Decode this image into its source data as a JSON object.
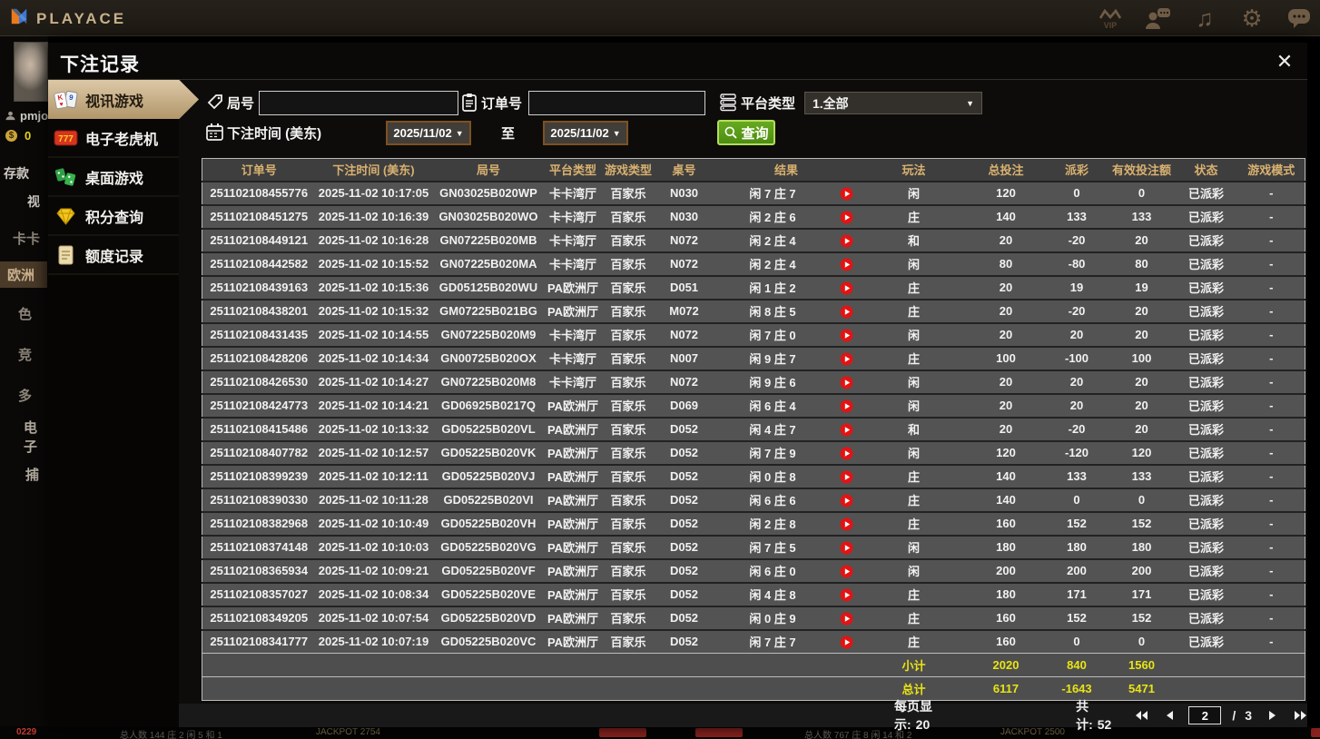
{
  "topbar": {
    "brand": "PLAYACE",
    "icons": [
      "vip-icon",
      "support-icon",
      "music-icon",
      "settings-icon",
      "chat-icon"
    ]
  },
  "background_left": {
    "username": "pmjo",
    "balance": "0",
    "fragments": [
      "存款",
      "视",
      "卡卡",
      "欧洲",
      "色",
      "竞",
      "多",
      "电子",
      "捕"
    ]
  },
  "background_bottom": {
    "left_text": "0229",
    "table1_info": "总人数 144 庄 2 闲 5 和 1",
    "jackpot1": "JACKPOT 2754",
    "table2_info": "总人数 767 庄 8 闲 14 和 2",
    "jackpot2": "JACKPOT 2500"
  },
  "modal": {
    "title": "下注记录",
    "close_label": "✕",
    "sidebar": [
      {
        "label": "视讯游戏",
        "icon": "cards-icon",
        "active": true
      },
      {
        "label": "电子老虎机",
        "icon": "slot-777-icon",
        "active": false
      },
      {
        "label": "桌面游戏",
        "icon": "dice-icon",
        "active": false
      },
      {
        "label": "积分查询",
        "icon": "diamond-icon",
        "active": false
      },
      {
        "label": "额度记录",
        "icon": "document-icon",
        "active": false
      }
    ],
    "filters": {
      "round_label": "局号",
      "round_value": "",
      "order_label": "订单号",
      "order_value": "",
      "platform_label": "平台类型",
      "platform_value": "1.全部",
      "time_label": "下注时间 (美东)",
      "date_from": "2025/11/02",
      "to_label": "至",
      "date_to": "2025/11/02",
      "search_label": "查询"
    },
    "table": {
      "headers": [
        "订单号",
        "下注时间 (美东)",
        "局号",
        "平台类型",
        "游戏类型",
        "桌号",
        "结果",
        "玩法",
        "总投注",
        "派彩",
        "有效投注额",
        "状态",
        "游戏模式"
      ],
      "rows": [
        {
          "order_id": "251102108455776",
          "bet_time": "2025-11-02 10:17:05",
          "round_id": "GN03025B020WP",
          "platform": "卡卡湾厅",
          "game_type": "百家乐",
          "table_no": "N030",
          "result": "闲 7 庄 7",
          "play_type": "闲",
          "total_bet": "120",
          "payout": "0",
          "valid_bet": "0",
          "status": "已派彩",
          "mode": "-"
        },
        {
          "order_id": "251102108451275",
          "bet_time": "2025-11-02 10:16:39",
          "round_id": "GN03025B020WO",
          "platform": "卡卡湾厅",
          "game_type": "百家乐",
          "table_no": "N030",
          "result": "闲 2 庄 6",
          "play_type": "庄",
          "total_bet": "140",
          "payout": "133",
          "valid_bet": "133",
          "status": "已派彩",
          "mode": "-"
        },
        {
          "order_id": "251102108449121",
          "bet_time": "2025-11-02 10:16:28",
          "round_id": "GN07225B020MB",
          "platform": "卡卡湾厅",
          "game_type": "百家乐",
          "table_no": "N072",
          "result": "闲 2 庄 4",
          "play_type": "和",
          "total_bet": "20",
          "payout": "-20",
          "valid_bet": "20",
          "status": "已派彩",
          "mode": "-"
        },
        {
          "order_id": "251102108442582",
          "bet_time": "2025-11-02 10:15:52",
          "round_id": "GN07225B020MA",
          "platform": "卡卡湾厅",
          "game_type": "百家乐",
          "table_no": "N072",
          "result": "闲 2 庄 4",
          "play_type": "闲",
          "total_bet": "80",
          "payout": "-80",
          "valid_bet": "80",
          "status": "已派彩",
          "mode": "-"
        },
        {
          "order_id": "251102108439163",
          "bet_time": "2025-11-02 10:15:36",
          "round_id": "GD05125B020WU",
          "platform": "PA欧洲厅",
          "game_type": "百家乐",
          "table_no": "D051",
          "result": "闲 1 庄 2",
          "play_type": "庄",
          "total_bet": "20",
          "payout": "19",
          "valid_bet": "19",
          "status": "已派彩",
          "mode": "-"
        },
        {
          "order_id": "251102108438201",
          "bet_time": "2025-11-02 10:15:32",
          "round_id": "GM07225B021BG",
          "platform": "PA欧洲厅",
          "game_type": "百家乐",
          "table_no": "M072",
          "result": "闲 8 庄 5",
          "play_type": "庄",
          "total_bet": "20",
          "payout": "-20",
          "valid_bet": "20",
          "status": "已派彩",
          "mode": "-"
        },
        {
          "order_id": "251102108431435",
          "bet_time": "2025-11-02 10:14:55",
          "round_id": "GN07225B020M9",
          "platform": "卡卡湾厅",
          "game_type": "百家乐",
          "table_no": "N072",
          "result": "闲 7 庄 0",
          "play_type": "闲",
          "total_bet": "20",
          "payout": "20",
          "valid_bet": "20",
          "status": "已派彩",
          "mode": "-"
        },
        {
          "order_id": "251102108428206",
          "bet_time": "2025-11-02 10:14:34",
          "round_id": "GN00725B020OX",
          "platform": "卡卡湾厅",
          "game_type": "百家乐",
          "table_no": "N007",
          "result": "闲 9 庄 7",
          "play_type": "庄",
          "total_bet": "100",
          "payout": "-100",
          "valid_bet": "100",
          "status": "已派彩",
          "mode": "-"
        },
        {
          "order_id": "251102108426530",
          "bet_time": "2025-11-02 10:14:27",
          "round_id": "GN07225B020M8",
          "platform": "卡卡湾厅",
          "game_type": "百家乐",
          "table_no": "N072",
          "result": "闲 9 庄 6",
          "play_type": "闲",
          "total_bet": "20",
          "payout": "20",
          "valid_bet": "20",
          "status": "已派彩",
          "mode": "-"
        },
        {
          "order_id": "251102108424773",
          "bet_time": "2025-11-02 10:14:21",
          "round_id": "GD06925B0217Q",
          "platform": "PA欧洲厅",
          "game_type": "百家乐",
          "table_no": "D069",
          "result": "闲 6 庄 4",
          "play_type": "闲",
          "total_bet": "20",
          "payout": "20",
          "valid_bet": "20",
          "status": "已派彩",
          "mode": "-"
        },
        {
          "order_id": "251102108415486",
          "bet_time": "2025-11-02 10:13:32",
          "round_id": "GD05225B020VL",
          "platform": "PA欧洲厅",
          "game_type": "百家乐",
          "table_no": "D052",
          "result": "闲 4 庄 7",
          "play_type": "和",
          "total_bet": "20",
          "payout": "-20",
          "valid_bet": "20",
          "status": "已派彩",
          "mode": "-"
        },
        {
          "order_id": "251102108407782",
          "bet_time": "2025-11-02 10:12:57",
          "round_id": "GD05225B020VK",
          "platform": "PA欧洲厅",
          "game_type": "百家乐",
          "table_no": "D052",
          "result": "闲 7 庄 9",
          "play_type": "闲",
          "total_bet": "120",
          "payout": "-120",
          "valid_bet": "120",
          "status": "已派彩",
          "mode": "-"
        },
        {
          "order_id": "251102108399239",
          "bet_time": "2025-11-02 10:12:11",
          "round_id": "GD05225B020VJ",
          "platform": "PA欧洲厅",
          "game_type": "百家乐",
          "table_no": "D052",
          "result": "闲 0 庄 8",
          "play_type": "庄",
          "total_bet": "140",
          "payout": "133",
          "valid_bet": "133",
          "status": "已派彩",
          "mode": "-"
        },
        {
          "order_id": "251102108390330",
          "bet_time": "2025-11-02 10:11:28",
          "round_id": "GD05225B020VI",
          "platform": "PA欧洲厅",
          "game_type": "百家乐",
          "table_no": "D052",
          "result": "闲 6 庄 6",
          "play_type": "庄",
          "total_bet": "140",
          "payout": "0",
          "valid_bet": "0",
          "status": "已派彩",
          "mode": "-"
        },
        {
          "order_id": "251102108382968",
          "bet_time": "2025-11-02 10:10:49",
          "round_id": "GD05225B020VH",
          "platform": "PA欧洲厅",
          "game_type": "百家乐",
          "table_no": "D052",
          "result": "闲 2 庄 8",
          "play_type": "庄",
          "total_bet": "160",
          "payout": "152",
          "valid_bet": "152",
          "status": "已派彩",
          "mode": "-"
        },
        {
          "order_id": "251102108374148",
          "bet_time": "2025-11-02 10:10:03",
          "round_id": "GD05225B020VG",
          "platform": "PA欧洲厅",
          "game_type": "百家乐",
          "table_no": "D052",
          "result": "闲 7 庄 5",
          "play_type": "闲",
          "total_bet": "180",
          "payout": "180",
          "valid_bet": "180",
          "status": "已派彩",
          "mode": "-"
        },
        {
          "order_id": "251102108365934",
          "bet_time": "2025-11-02 10:09:21",
          "round_id": "GD05225B020VF",
          "platform": "PA欧洲厅",
          "game_type": "百家乐",
          "table_no": "D052",
          "result": "闲 6 庄 0",
          "play_type": "闲",
          "total_bet": "200",
          "payout": "200",
          "valid_bet": "200",
          "status": "已派彩",
          "mode": "-"
        },
        {
          "order_id": "251102108357027",
          "bet_time": "2025-11-02 10:08:34",
          "round_id": "GD05225B020VE",
          "platform": "PA欧洲厅",
          "game_type": "百家乐",
          "table_no": "D052",
          "result": "闲 4 庄 8",
          "play_type": "庄",
          "total_bet": "180",
          "payout": "171",
          "valid_bet": "171",
          "status": "已派彩",
          "mode": "-"
        },
        {
          "order_id": "251102108349205",
          "bet_time": "2025-11-02 10:07:54",
          "round_id": "GD05225B020VD",
          "platform": "PA欧洲厅",
          "game_type": "百家乐",
          "table_no": "D052",
          "result": "闲 0 庄 9",
          "play_type": "庄",
          "total_bet": "160",
          "payout": "152",
          "valid_bet": "152",
          "status": "已派彩",
          "mode": "-"
        },
        {
          "order_id": "251102108341777",
          "bet_time": "2025-11-02 10:07:19",
          "round_id": "GD05225B020VC",
          "platform": "PA欧洲厅",
          "game_type": "百家乐",
          "table_no": "D052",
          "result": "闲 7 庄 7",
          "play_type": "庄",
          "total_bet": "160",
          "payout": "0",
          "valid_bet": "0",
          "status": "已派彩",
          "mode": "-"
        }
      ],
      "subtotal": {
        "label": "小计",
        "total_bet": "2020",
        "payout": "840",
        "valid_bet": "1560"
      },
      "grand_total": {
        "label": "总计",
        "total_bet": "6117",
        "payout": "-1643",
        "valid_bet": "5471"
      }
    },
    "pagination": {
      "per_page_label": "每页显示:",
      "per_page_value": "20",
      "total_label": "共计:",
      "total_value": "52",
      "current_page": "2",
      "separator": "/",
      "total_pages": "3"
    }
  },
  "colors": {
    "accent_tan": "#c9ad82",
    "payout_positive": "#bb1e2d",
    "payout_negative": "#a8d428",
    "status_paid": "#2ed52e",
    "totals_yellow": "#e8e414",
    "query_green": "#5a9e1f"
  }
}
